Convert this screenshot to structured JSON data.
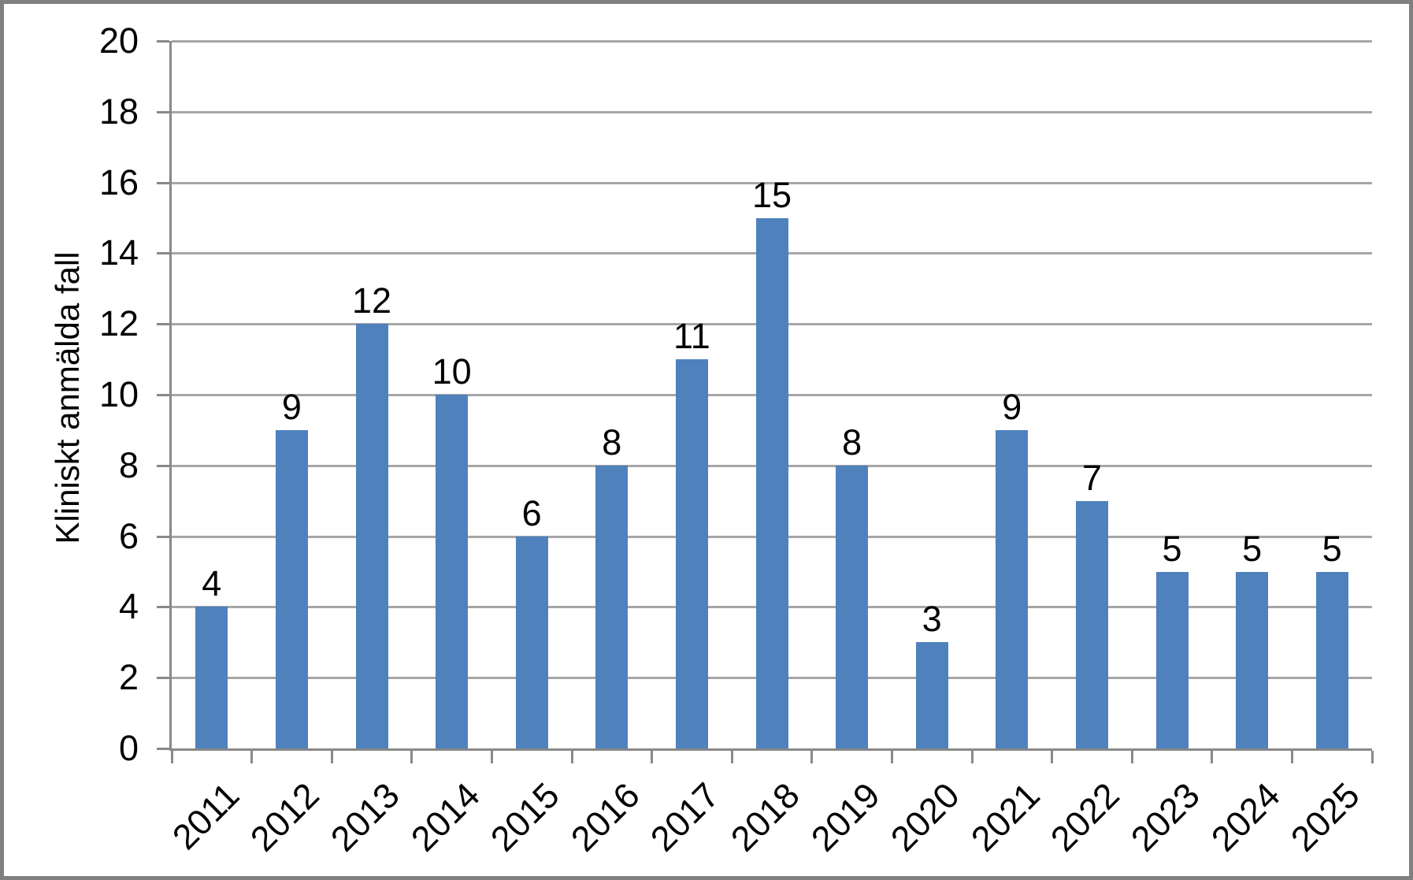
{
  "chart_data": {
    "type": "bar",
    "title": "",
    "categories": [
      "2011",
      "2012",
      "2013",
      "2014",
      "2015",
      "2016",
      "2017",
      "2018",
      "2019",
      "2020",
      "2021",
      "2022",
      "2023",
      "2024",
      "2025"
    ],
    "values": [
      4,
      9,
      12,
      10,
      6,
      8,
      11,
      15,
      8,
      3,
      9,
      7,
      5,
      5,
      5
    ],
    "xlabel": "",
    "ylabel": "Kliniskt anmälda fall",
    "ylim": [
      0,
      20
    ],
    "y_ticks": [
      0,
      2,
      4,
      6,
      8,
      10,
      12,
      14,
      16,
      18,
      20
    ],
    "grid": "horizontal",
    "legend": "none",
    "data_labels": true,
    "bar_color": "#4f81bd"
  },
  "colors": {
    "bar": "#4f81bd",
    "gridline": "#a6a6a6",
    "axis": "#898989",
    "frame": "#808080",
    "text": "#000000",
    "background": "#ffffff"
  }
}
